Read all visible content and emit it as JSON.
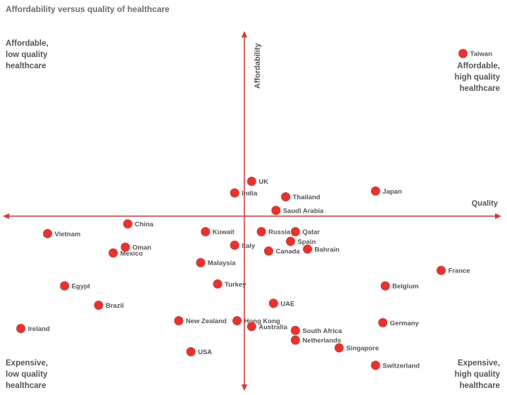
{
  "chart_data": {
    "type": "scatter",
    "title": "Affordability versus quality of healthcare",
    "xlabel": "Quality",
    "ylabel": "Affordability",
    "xlim": [
      -10,
      10
    ],
    "ylim": [
      -10,
      10
    ],
    "grid": false,
    "point_color": "#e8322b",
    "axis_color": "#e8322b",
    "quadrants": {
      "top_left": [
        "Affordable,",
        "low quality",
        "healthcare"
      ],
      "top_right": [
        "Affordable,",
        "high quality",
        "healthcare"
      ],
      "bottom_left": [
        "Expensive,",
        "low quality",
        "healthcare"
      ],
      "bottom_right": [
        "Expensive,",
        "high quality",
        "healthcare"
      ]
    },
    "points": [
      {
        "label": "Taiwan",
        "x": 9.0,
        "y": 8.4
      },
      {
        "label": "UK",
        "x": 0.3,
        "y": 1.8
      },
      {
        "label": "India",
        "x": -0.4,
        "y": 1.2
      },
      {
        "label": "Thailand",
        "x": 1.7,
        "y": 1.0
      },
      {
        "label": "Japan",
        "x": 5.4,
        "y": 1.3
      },
      {
        "label": "Saudi Arabia",
        "x": 1.3,
        "y": 0.3
      },
      {
        "label": "China",
        "x": -4.8,
        "y": -0.4
      },
      {
        "label": "Kuwait",
        "x": -1.6,
        "y": -0.8
      },
      {
        "label": "Russia",
        "x": 0.7,
        "y": -0.8
      },
      {
        "label": "Qatar",
        "x": 2.1,
        "y": -0.8
      },
      {
        "label": "Vietnam",
        "x": -8.1,
        "y": -0.9
      },
      {
        "label": "Spain",
        "x": 1.9,
        "y": -1.3
      },
      {
        "label": "Italy",
        "x": -0.4,
        "y": -1.5
      },
      {
        "label": "Oman",
        "x": -4.9,
        "y": -1.6
      },
      {
        "label": "Canada",
        "x": 1.0,
        "y": -1.8
      },
      {
        "label": "Bahrain",
        "x": 2.6,
        "y": -1.7
      },
      {
        "label": "Mexico",
        "x": -5.4,
        "y": -1.9
      },
      {
        "label": "Malaysia",
        "x": -1.8,
        "y": -2.4
      },
      {
        "label": "France",
        "x": 8.1,
        "y": -2.8
      },
      {
        "label": "Egypt",
        "x": -7.4,
        "y": -3.6
      },
      {
        "label": "Turkey",
        "x": -1.1,
        "y": -3.5
      },
      {
        "label": "Belgium",
        "x": 5.8,
        "y": -3.6
      },
      {
        "label": "Brazil",
        "x": -6.0,
        "y": -4.6
      },
      {
        "label": "UAE",
        "x": 1.2,
        "y": -4.5
      },
      {
        "label": "New Zealand",
        "x": -2.7,
        "y": -5.4
      },
      {
        "label": "Hong Kong",
        "x": -0.3,
        "y": -5.4
      },
      {
        "label": "Germany",
        "x": 5.7,
        "y": -5.5
      },
      {
        "label": "Ireland",
        "x": -9.2,
        "y": -5.8
      },
      {
        "label": "Australia",
        "x": 0.3,
        "y": -5.7
      },
      {
        "label": "South Africa",
        "x": 2.1,
        "y": -5.9
      },
      {
        "label": "Netherlands",
        "x": 2.1,
        "y": -6.4
      },
      {
        "label": "Singapore",
        "x": 3.9,
        "y": -6.8
      },
      {
        "label": "USA",
        "x": -2.2,
        "y": -7.0
      },
      {
        "label": "Switzerland",
        "x": 5.4,
        "y": -7.7
      }
    ]
  }
}
